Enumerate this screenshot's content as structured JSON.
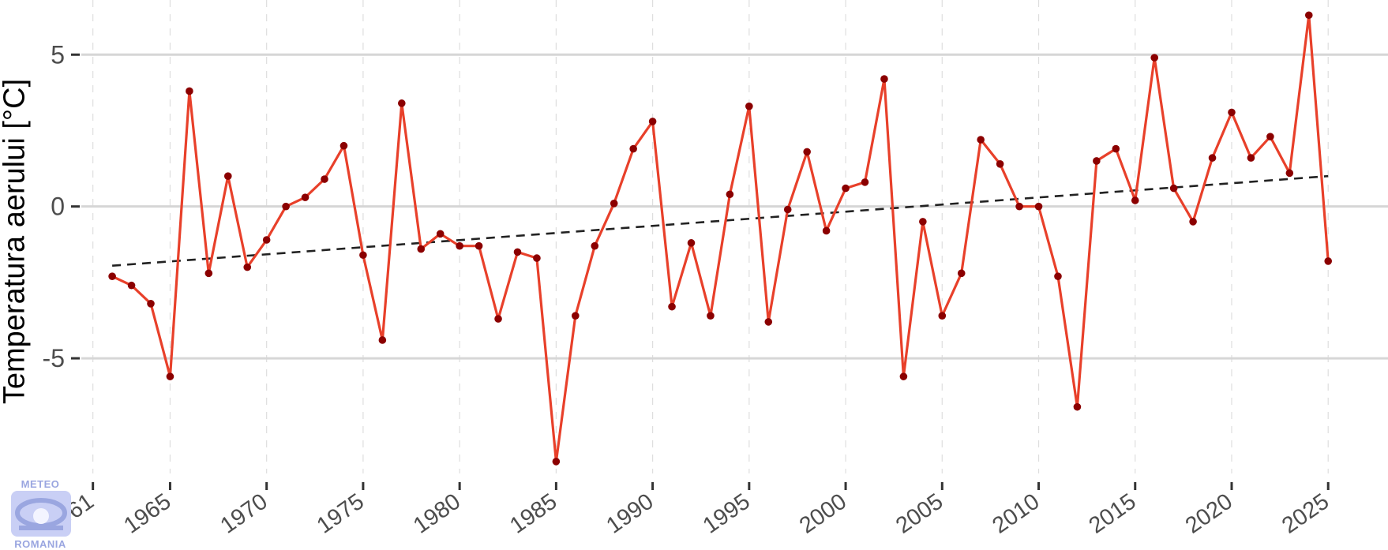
{
  "chart_data": {
    "type": "line",
    "ylabel": "Temperatura aerului [°C]",
    "xlabel": "",
    "title": "",
    "ylim": [
      -9.0,
      6.8
    ],
    "xlim": [
      1960.4,
      2028.1
    ],
    "yticks": [
      -5,
      0,
      5
    ],
    "xticks": [
      1961,
      1965,
      1970,
      1975,
      1980,
      1985,
      1990,
      1995,
      2000,
      2005,
      2010,
      2015,
      2020,
      2025
    ],
    "grid": true,
    "legend": "none",
    "series": [
      {
        "color": "#e8402a",
        "marker_color": "#8b0000",
        "x": [
          1962,
          1963,
          1964,
          1965,
          1966,
          1967,
          1968,
          1969,
          1970,
          1971,
          1972,
          1973,
          1974,
          1975,
          1976,
          1977,
          1978,
          1979,
          1980,
          1981,
          1982,
          1983,
          1984,
          1985,
          1986,
          1987,
          1988,
          1989,
          1990,
          1991,
          1992,
          1993,
          1994,
          1995,
          1996,
          1997,
          1998,
          1999,
          2000,
          2001,
          2002,
          2003,
          2004,
          2005,
          2006,
          2007,
          2008,
          2009,
          2010,
          2011,
          2012,
          2013,
          2014,
          2015,
          2016,
          2017,
          2018,
          2019,
          2020,
          2021,
          2022,
          2023,
          2024,
          2025
        ],
        "y": [
          -2.3,
          -2.6,
          -3.2,
          -5.6,
          3.8,
          -2.2,
          1.0,
          -2.0,
          -1.1,
          0.0,
          0.3,
          0.9,
          2.0,
          -1.6,
          -4.4,
          3.4,
          -1.4,
          -0.9,
          -1.3,
          -1.3,
          -3.7,
          -1.5,
          -1.7,
          -8.4,
          -3.6,
          -1.3,
          0.1,
          1.9,
          2.8,
          -3.3,
          -1.2,
          -3.6,
          0.4,
          3.3,
          -3.8,
          -0.1,
          1.8,
          -0.8,
          0.6,
          0.8,
          4.2,
          -5.6,
          -0.5,
          -3.6,
          -2.2,
          2.2,
          1.4,
          0.0,
          0.0,
          -2.3,
          -6.6,
          1.5,
          1.9,
          0.2,
          4.9,
          0.6,
          -0.5,
          1.6,
          3.1,
          1.6,
          2.3,
          1.1,
          6.3,
          -1.8
        ]
      }
    ],
    "trend": {
      "x": [
        1962,
        2025
      ],
      "y": [
        -1.95,
        1.0
      ],
      "color": "#222222",
      "style": "dashed"
    }
  },
  "logo": {
    "top_text": "METEO",
    "bottom_text": "ROMANIA"
  }
}
